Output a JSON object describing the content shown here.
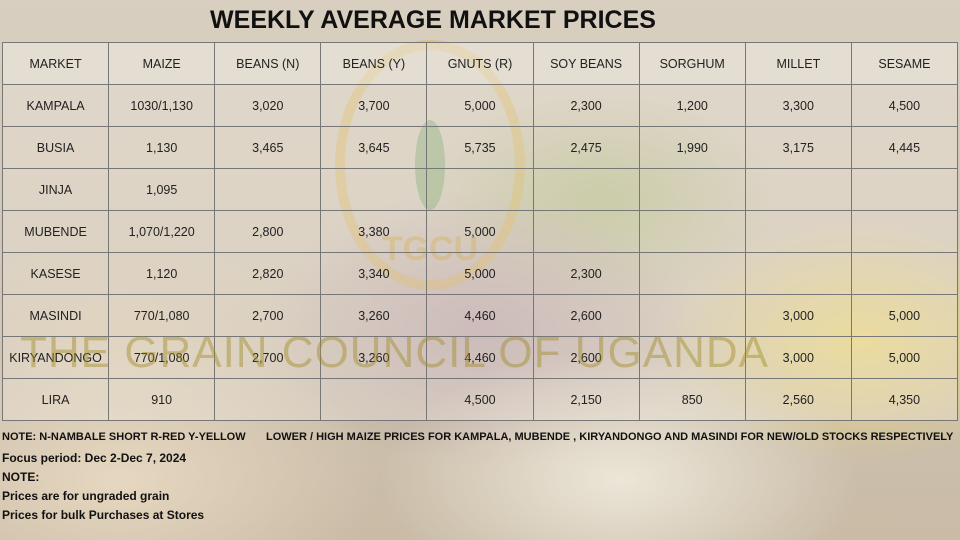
{
  "title": "WEEKLY AVERAGE MARKET PRICES",
  "watermark": {
    "text": "THE GRAIN COUNCIL OF UGANDA",
    "logo": "TGCU"
  },
  "table": {
    "header": [
      "MARKET",
      "MAIZE",
      "BEANS (N)",
      "BEANS (Y)",
      "GNUTS (R)",
      "SOY BEANS",
      "SORGHUM",
      "MILLET",
      "SESAME"
    ],
    "rows": [
      [
        "KAMPALA",
        "1030/1,130",
        "3,020",
        "3,700",
        "5,000",
        "2,300",
        "1,200",
        "3,300",
        "4,500"
      ],
      [
        "BUSIA",
        "1,130",
        "3,465",
        "3,645",
        "5,735",
        "2,475",
        "1,990",
        "3,175",
        "4,445"
      ],
      [
        "JINJA",
        "1,095",
        null,
        null,
        null,
        null,
        null,
        null,
        null
      ],
      [
        "MUBENDE",
        "1,070/1,220",
        "2,800",
        "3,380",
        "5,000",
        null,
        null,
        null,
        null
      ],
      [
        "KASESE",
        "1,120",
        "2,820",
        "3,340",
        "5,000",
        "2,300",
        null,
        null,
        null
      ],
      [
        "MASINDI",
        "770/1,080",
        "2,700",
        "3,260",
        "4,460",
        "2,600",
        null,
        "3,000",
        "5,000"
      ],
      [
        "KIRYANDONGO",
        "770/1,080",
        "2,700",
        "3,260",
        "4,460",
        "2,600",
        null,
        "3,000",
        "5,000"
      ],
      [
        "LIRA",
        "910",
        null,
        null,
        "4,500",
        "2,150",
        "850",
        "2,560",
        "4,350"
      ]
    ]
  },
  "notes": {
    "legend": "NOTE: N-NAMBALE SHORT R-RED Y-YELLOW",
    "maize": "LOWER / HIGH MAIZE  PRICES FOR KAMPALA, MUBENDE , KIRYANDONGO AND MASINDI  FOR NEW/OLD  STOCKS RESPECTIVELY",
    "focus": "Focus period:  Dec 2-Dec 7, 2024",
    "note_heading": "NOTE:",
    "lines": [
      "Prices are for ungraded grain",
      "Prices for bulk Purchases at Stores"
    ]
  }
}
